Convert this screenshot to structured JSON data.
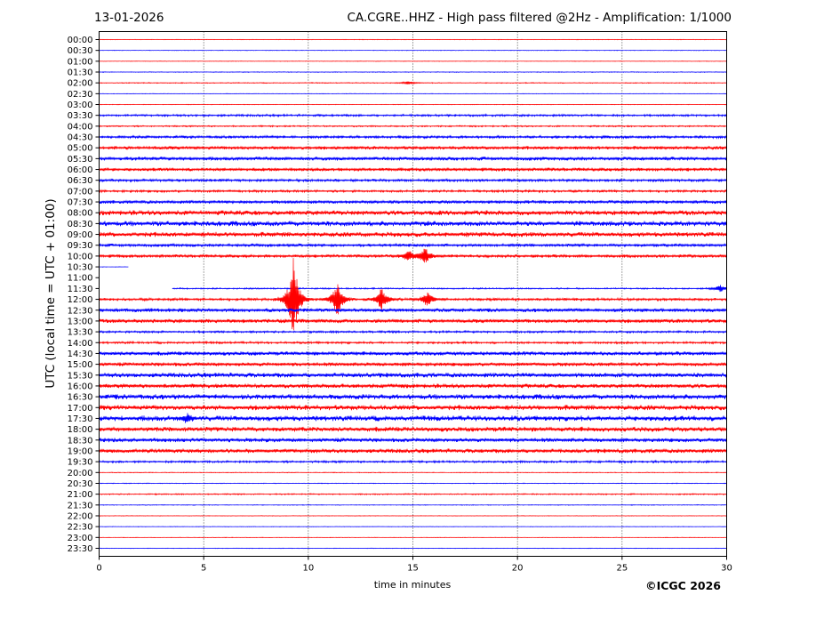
{
  "header": {
    "date": "13-01-2026",
    "title": "CA.CGRE..HHZ - High pass filtered @2Hz - Amplification: 1/1000"
  },
  "footer": {
    "copyright": "©ICGC 2026"
  },
  "colors": {
    "odd": "#0000ff",
    "even": "#ff0000",
    "frame": "#000000",
    "grid": "#000000"
  },
  "chart_data": {
    "type": "line",
    "title": "CA.CGRE..HHZ - High pass filtered @2Hz - Amplification: 1/1000",
    "xlabel": "time in minutes",
    "ylabel": "UTC (local time = UTC + 01:00)",
    "xlim": [
      0,
      30
    ],
    "xticks": [
      0,
      5,
      10,
      15,
      20,
      25,
      30
    ],
    "grid_x": true,
    "rows": [
      "00:00",
      "00:30",
      "01:00",
      "01:30",
      "02:00",
      "02:30",
      "03:00",
      "03:30",
      "04:00",
      "04:30",
      "05:00",
      "05:30",
      "06:00",
      "06:30",
      "07:00",
      "07:30",
      "08:00",
      "08:30",
      "09:00",
      "09:30",
      "10:00",
      "10:30",
      "11:00",
      "11:30",
      "12:00",
      "12:30",
      "13:00",
      "13:30",
      "14:00",
      "14:30",
      "15:00",
      "15:30",
      "16:00",
      "16:30",
      "17:00",
      "17:30",
      "18:00",
      "18:30",
      "19:00",
      "19:30",
      "20:00",
      "20:30",
      "21:00",
      "21:30",
      "22:00",
      "22:30",
      "23:00",
      "23:30"
    ],
    "row_colors": [
      "red",
      "blue"
    ],
    "noise_level": [
      0.3,
      0.3,
      0.3,
      0.4,
      0.5,
      0.3,
      0.3,
      1.2,
      0.8,
      1.5,
      2.0,
      2.2,
      2.0,
      1.5,
      1.3,
      2.0,
      2.8,
      3.0,
      2.8,
      1.8,
      1.8,
      0.3,
      0.0,
      0.8,
      1.5,
      2.2,
      2.3,
      1.2,
      1.2,
      2.3,
      2.2,
      2.8,
      2.5,
      3.0,
      3.0,
      3.2,
      2.8,
      2.4,
      2.5,
      1.2,
      0.4,
      0.4,
      0.7,
      0.4,
      0.3,
      0.3,
      0.3,
      0.3
    ],
    "partial_rows": {
      "10:30": [
        0,
        1.4
      ],
      "11:00": [
        0,
        0
      ],
      "11:30": [
        3.5,
        30
      ]
    },
    "events": [
      {
        "row": "02:00",
        "minute": 14.8,
        "amplitude": 2
      },
      {
        "row": "10:00",
        "minute": 14.8,
        "amplitude": 6
      },
      {
        "row": "10:00",
        "minute": 15.6,
        "amplitude": 9
      },
      {
        "row": "11:30",
        "minute": 29.7,
        "amplitude": 4
      },
      {
        "row": "12:00",
        "minute": 9.3,
        "amplitude": 50
      },
      {
        "row": "12:00",
        "minute": 11.4,
        "amplitude": 22
      },
      {
        "row": "12:00",
        "minute": 13.5,
        "amplitude": 14
      },
      {
        "row": "12:00",
        "minute": 15.7,
        "amplitude": 9
      },
      {
        "row": "17:30",
        "minute": 4.2,
        "amplitude": 4
      }
    ]
  }
}
